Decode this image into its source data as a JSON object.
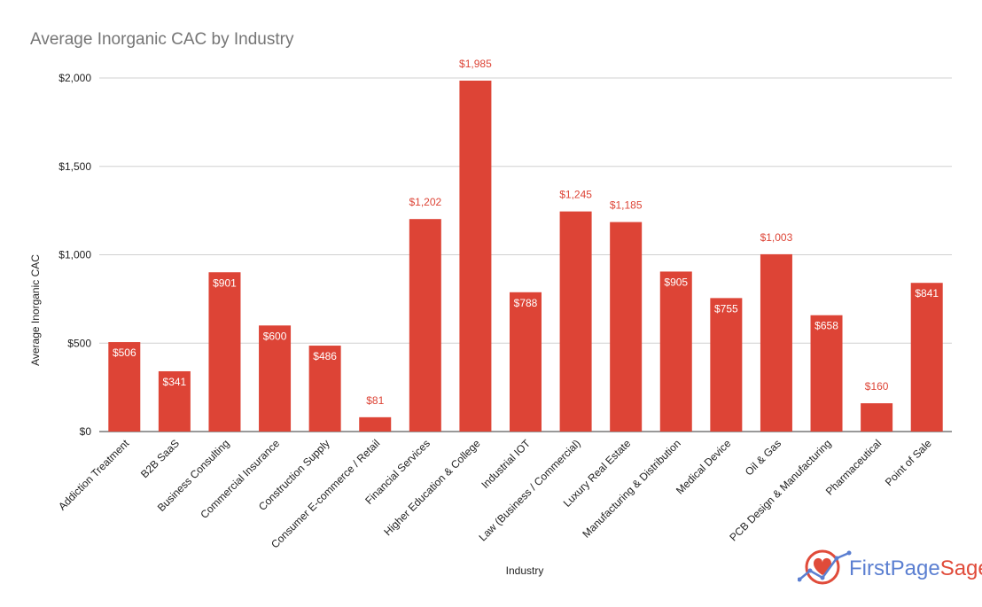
{
  "chart_data": {
    "type": "bar",
    "title": "Average Inorganic CAC by Industry",
    "xlabel": "Industry",
    "ylabel": "Average Inorganic CAC",
    "ylim": [
      0,
      2000
    ],
    "yticks": [
      0,
      500,
      1000,
      1500,
      2000
    ],
    "ytick_labels": [
      "$0",
      "$500",
      "$1,000",
      "$1,500",
      "$2,000"
    ],
    "grid": true,
    "bar_color": "#dd4436",
    "categories": [
      "Addiction Treatment",
      "B2B SaaS",
      "Business Consulting",
      "Commercial Insurance",
      "Construction Supply",
      "Consumer E-commerce / Retail",
      "Financial Services",
      "Higher Education & College",
      "Industrial IOT",
      "Law (Business / Commercial)",
      "Luxury Real Estate",
      "Manufacturing & Distribution",
      "Medical Device",
      "Oil & Gas",
      "PCB Design & Manufacturing",
      "Pharmaceutical",
      "Point of Sale"
    ],
    "values": [
      506,
      341,
      901,
      600,
      486,
      81,
      1202,
      1985,
      788,
      1245,
      1185,
      905,
      755,
      1003,
      658,
      160,
      841
    ],
    "value_labels": [
      "$506",
      "$341",
      "$901",
      "$600",
      "$486",
      "$81",
      "$1,202",
      "$1,985",
      "$788",
      "$1,245",
      "$1,185",
      "$905",
      "$755",
      "$1,003",
      "$658",
      "$160",
      "$841"
    ]
  },
  "branding": {
    "logo_text_a": "FirstPage",
    "logo_text_b": "Sage",
    "icon": "heart-chart-icon"
  }
}
